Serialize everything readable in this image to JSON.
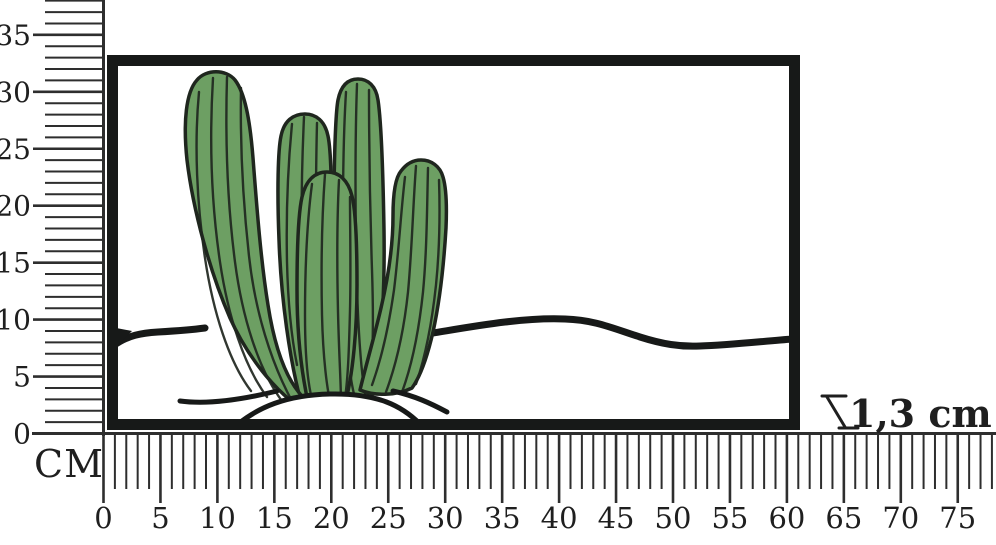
{
  "rulers": {
    "unit_label": "CM",
    "vertical": {
      "tick_labels": [
        "0",
        "5",
        "10",
        "15",
        "20",
        "25",
        "30",
        "35"
      ]
    },
    "horizontal": {
      "tick_labels": [
        "0",
        "5",
        "10",
        "15",
        "20",
        "25",
        "30",
        "35",
        "40",
        "45",
        "50",
        "55",
        "60",
        "65",
        "70",
        "75"
      ]
    }
  },
  "depth_annotation": {
    "label": "1,3 cm"
  },
  "colors": {
    "ink": "#1f1f1f",
    "frame": "#171918",
    "tick": "#2e2e2e",
    "cactus_green": "#6d9f63",
    "cactus_outline": "#1f261e",
    "background": "#ffffff"
  }
}
